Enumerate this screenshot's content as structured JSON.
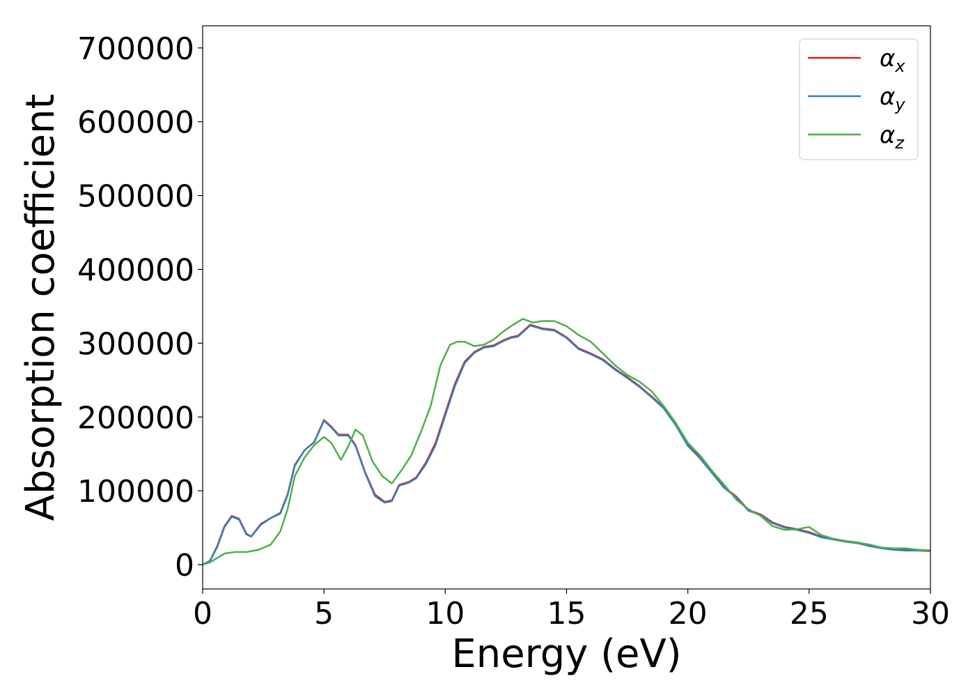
{
  "chart_data": {
    "type": "line",
    "xlabel": "Energy (eV)",
    "ylabel": "Absorption coefficient",
    "xlim": [
      0,
      30
    ],
    "ylim": [
      -33000,
      730000
    ],
    "xticks": [
      0,
      5,
      10,
      15,
      20,
      25,
      30
    ],
    "yticks": [
      0,
      100000,
      200000,
      300000,
      400000,
      500000,
      600000,
      700000
    ],
    "xtick_labels": [
      "0",
      "5",
      "10",
      "15",
      "20",
      "25",
      "30"
    ],
    "ytick_labels": [
      "0",
      "100000",
      "200000",
      "300000",
      "400000",
      "500000",
      "600000",
      "700000"
    ],
    "grid": false,
    "legend_position": "top-right",
    "series": [
      {
        "name": "αx",
        "legend": {
          "main": "α",
          "sub": "x"
        },
        "color": "#e41a1c",
        "points": [
          [
            0,
            0
          ],
          [
            0.3,
            5000
          ],
          [
            0.6,
            25000
          ],
          [
            0.9,
            52000
          ],
          [
            1.2,
            66000
          ],
          [
            1.5,
            62000
          ],
          [
            1.8,
            42000
          ],
          [
            2.0,
            38000
          ],
          [
            2.4,
            55000
          ],
          [
            2.8,
            63000
          ],
          [
            3.2,
            70000
          ],
          [
            3.5,
            95000
          ],
          [
            3.8,
            135000
          ],
          [
            4.2,
            155000
          ],
          [
            4.6,
            166000
          ],
          [
            5.0,
            196000
          ],
          [
            5.3,
            187000
          ],
          [
            5.6,
            176000
          ],
          [
            6.0,
            176000
          ],
          [
            6.3,
            162000
          ],
          [
            6.7,
            125000
          ],
          [
            7.1,
            95000
          ],
          [
            7.5,
            85000
          ],
          [
            7.8,
            87000
          ],
          [
            8.1,
            108000
          ],
          [
            8.5,
            112000
          ],
          [
            8.8,
            118000
          ],
          [
            9.2,
            138000
          ],
          [
            9.6,
            165000
          ],
          [
            10.0,
            205000
          ],
          [
            10.4,
            245000
          ],
          [
            10.8,
            275000
          ],
          [
            11.2,
            288000
          ],
          [
            11.6,
            295000
          ],
          [
            12.0,
            297000
          ],
          [
            12.4,
            304000
          ],
          [
            12.7,
            308000
          ],
          [
            13.0,
            310000
          ],
          [
            13.5,
            325000
          ],
          [
            14.0,
            320000
          ],
          [
            14.5,
            318000
          ],
          [
            15.0,
            308000
          ],
          [
            15.5,
            293000
          ],
          [
            16.0,
            286000
          ],
          [
            16.5,
            278000
          ],
          [
            17.0,
            265000
          ],
          [
            17.5,
            254000
          ],
          [
            18.0,
            242000
          ],
          [
            18.5,
            228000
          ],
          [
            19.0,
            213000
          ],
          [
            19.5,
            190000
          ],
          [
            20.0,
            162000
          ],
          [
            20.5,
            145000
          ],
          [
            21.0,
            125000
          ],
          [
            21.5,
            105000
          ],
          [
            22.0,
            92000
          ],
          [
            22.5,
            74000
          ],
          [
            23.0,
            68000
          ],
          [
            23.5,
            57000
          ],
          [
            24.0,
            51000
          ],
          [
            24.5,
            48000
          ],
          [
            25.0,
            44000
          ],
          [
            25.5,
            38000
          ],
          [
            26.0,
            35000
          ],
          [
            26.5,
            32000
          ],
          [
            27.0,
            30000
          ],
          [
            27.5,
            25000
          ],
          [
            28.0,
            23000
          ],
          [
            28.5,
            21000
          ],
          [
            29.0,
            20000
          ],
          [
            29.5,
            20000
          ],
          [
            30.0,
            19000
          ]
        ]
      },
      {
        "name": "αy",
        "legend": {
          "main": "α",
          "sub": "y"
        },
        "color": "#377eb8",
        "points": [
          [
            0,
            0
          ],
          [
            0.3,
            5000
          ],
          [
            0.6,
            24000
          ],
          [
            0.9,
            51000
          ],
          [
            1.2,
            65000
          ],
          [
            1.5,
            61000
          ],
          [
            1.8,
            41000
          ],
          [
            2.0,
            38000
          ],
          [
            2.4,
            54000
          ],
          [
            2.8,
            63000
          ],
          [
            3.2,
            69000
          ],
          [
            3.5,
            94000
          ],
          [
            3.8,
            134000
          ],
          [
            4.2,
            155000
          ],
          [
            4.6,
            166000
          ],
          [
            5.0,
            195000
          ],
          [
            5.3,
            186000
          ],
          [
            5.6,
            175000
          ],
          [
            6.0,
            175000
          ],
          [
            6.3,
            161000
          ],
          [
            6.7,
            124000
          ],
          [
            7.1,
            93000
          ],
          [
            7.5,
            84000
          ],
          [
            7.8,
            86000
          ],
          [
            8.1,
            107000
          ],
          [
            8.5,
            111000
          ],
          [
            8.8,
            117000
          ],
          [
            9.2,
            136000
          ],
          [
            9.6,
            162000
          ],
          [
            10.0,
            202000
          ],
          [
            10.4,
            242000
          ],
          [
            10.8,
            273000
          ],
          [
            11.2,
            287000
          ],
          [
            11.6,
            294000
          ],
          [
            12.0,
            296000
          ],
          [
            12.4,
            303000
          ],
          [
            12.7,
            307000
          ],
          [
            13.0,
            309000
          ],
          [
            13.5,
            324000
          ],
          [
            14.0,
            319000
          ],
          [
            14.5,
            317000
          ],
          [
            15.0,
            307000
          ],
          [
            15.5,
            292000
          ],
          [
            16.0,
            285000
          ],
          [
            16.5,
            277000
          ],
          [
            17.0,
            264000
          ],
          [
            17.5,
            253000
          ],
          [
            18.0,
            241000
          ],
          [
            18.5,
            227000
          ],
          [
            19.0,
            212000
          ],
          [
            19.5,
            189000
          ],
          [
            20.0,
            161000
          ],
          [
            20.5,
            144000
          ],
          [
            21.0,
            124000
          ],
          [
            21.5,
            104000
          ],
          [
            22.0,
            91000
          ],
          [
            22.5,
            73000
          ],
          [
            23.0,
            67000
          ],
          [
            23.5,
            56000
          ],
          [
            24.0,
            50000
          ],
          [
            24.5,
            47000
          ],
          [
            25.0,
            43000
          ],
          [
            25.5,
            37000
          ],
          [
            26.0,
            34000
          ],
          [
            26.5,
            31000
          ],
          [
            27.0,
            29000
          ],
          [
            27.5,
            25000
          ],
          [
            28.0,
            22000
          ],
          [
            28.5,
            20000
          ],
          [
            29.0,
            19000
          ],
          [
            29.5,
            19000
          ],
          [
            30.0,
            18000
          ]
        ]
      },
      {
        "name": "αz",
        "legend": {
          "main": "α",
          "sub": "z"
        },
        "color": "#4daf4a",
        "points": [
          [
            0,
            0
          ],
          [
            0.3,
            3000
          ],
          [
            0.6,
            9000
          ],
          [
            0.9,
            15000
          ],
          [
            1.3,
            17000
          ],
          [
            1.8,
            17000
          ],
          [
            2.3,
            20000
          ],
          [
            2.8,
            27000
          ],
          [
            3.2,
            45000
          ],
          [
            3.5,
            75000
          ],
          [
            3.8,
            120000
          ],
          [
            4.2,
            145000
          ],
          [
            4.6,
            162000
          ],
          [
            5.0,
            173000
          ],
          [
            5.3,
            165000
          ],
          [
            5.7,
            142000
          ],
          [
            6.0,
            160000
          ],
          [
            6.3,
            183000
          ],
          [
            6.6,
            175000
          ],
          [
            7.0,
            140000
          ],
          [
            7.4,
            120000
          ],
          [
            7.8,
            110000
          ],
          [
            8.2,
            128000
          ],
          [
            8.6,
            148000
          ],
          [
            9.0,
            180000
          ],
          [
            9.4,
            215000
          ],
          [
            9.8,
            270000
          ],
          [
            10.2,
            298000
          ],
          [
            10.5,
            302000
          ],
          [
            10.8,
            302000
          ],
          [
            11.2,
            296000
          ],
          [
            11.6,
            298000
          ],
          [
            12.0,
            305000
          ],
          [
            12.4,
            316000
          ],
          [
            12.8,
            325000
          ],
          [
            13.2,
            333000
          ],
          [
            13.6,
            328000
          ],
          [
            14.0,
            330000
          ],
          [
            14.5,
            330000
          ],
          [
            15.0,
            323000
          ],
          [
            15.5,
            311000
          ],
          [
            16.0,
            302000
          ],
          [
            16.5,
            286000
          ],
          [
            17.0,
            270000
          ],
          [
            17.5,
            257000
          ],
          [
            18.0,
            248000
          ],
          [
            18.5,
            235000
          ],
          [
            19.0,
            215000
          ],
          [
            19.5,
            192000
          ],
          [
            20.0,
            165000
          ],
          [
            20.5,
            148000
          ],
          [
            21.0,
            127000
          ],
          [
            21.5,
            108000
          ],
          [
            22.0,
            88000
          ],
          [
            22.5,
            75000
          ],
          [
            23.0,
            66000
          ],
          [
            23.5,
            52000
          ],
          [
            24.0,
            47000
          ],
          [
            24.5,
            48000
          ],
          [
            25.0,
            51000
          ],
          [
            25.5,
            40000
          ],
          [
            26.0,
            35000
          ],
          [
            26.5,
            32000
          ],
          [
            27.0,
            30000
          ],
          [
            27.5,
            27000
          ],
          [
            28.0,
            23000
          ],
          [
            28.5,
            22000
          ],
          [
            29.0,
            22000
          ],
          [
            29.5,
            20000
          ],
          [
            30.0,
            18000
          ]
        ]
      }
    ]
  }
}
